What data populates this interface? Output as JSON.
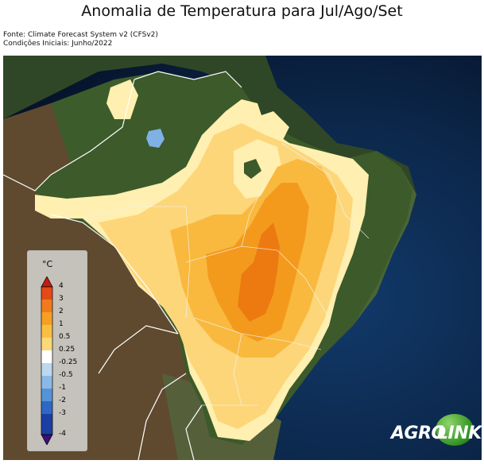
{
  "title": "Anomalia de Temperatura para Jul/Ago/Set",
  "source_line1": "Fonte: Climate Forecast System v2 (CFSv2)",
  "source_line2": "Condições Iniciais: Junho/2022",
  "legend": {
    "unit": "°C",
    "ticks": [
      "4",
      "3",
      "2",
      "1",
      "0.5",
      "0.25",
      "-0.25",
      "-0.5",
      "-1",
      "-2",
      "-3",
      "-4"
    ]
  },
  "logo": {
    "part1": "AGRO",
    "part2": "LINK"
  },
  "colors": {
    "ocean": "#0a1a33",
    "land_green": "#3f5f2c",
    "land_brown": "#6b5638",
    "anomaly_0_25": "#ffefb0",
    "anomaly_0_5": "#fdd67a",
    "anomaly_1": "#f9b93f",
    "anomaly_2": "#f39a1d",
    "anomaly_3": "#ec7a10",
    "anomaly_4": "#d9480c"
  }
}
